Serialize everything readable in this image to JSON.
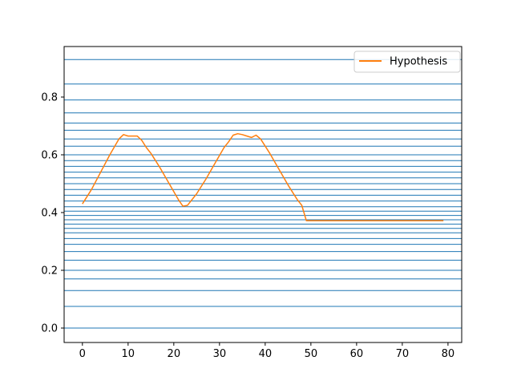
{
  "chart_data": {
    "type": "line",
    "title": "",
    "xlabel": "",
    "ylabel": "",
    "xlim": [
      -4,
      83
    ],
    "ylim": [
      -0.05,
      0.975
    ],
    "x_ticks": [
      0,
      10,
      20,
      30,
      40,
      50,
      60,
      70,
      80
    ],
    "y_ticks": [
      0.0,
      0.2,
      0.4,
      0.6,
      0.8
    ],
    "x_tick_labels": [
      "0",
      "10",
      "20",
      "30",
      "40",
      "50",
      "60",
      "70",
      "80"
    ],
    "y_tick_labels": [
      "0.0",
      "0.2",
      "0.4",
      "0.6",
      "0.8"
    ],
    "legend_position": "top-right",
    "grid": false,
    "colors": {
      "series": "#ff7f0e",
      "hlines": "#1f77b4",
      "axes": "#000000",
      "background": "#ffffff"
    },
    "horizontal_lines": {
      "color": "#1f77b4",
      "y": [
        0.0,
        0.075,
        0.13,
        0.17,
        0.2,
        0.235,
        0.265,
        0.29,
        0.31,
        0.33,
        0.345,
        0.36,
        0.375,
        0.39,
        0.405,
        0.42,
        0.44,
        0.46,
        0.48,
        0.5,
        0.52,
        0.54,
        0.56,
        0.58,
        0.6,
        0.63,
        0.655,
        0.685,
        0.71,
        0.745,
        0.79,
        0.845,
        0.93
      ]
    },
    "series": [
      {
        "name": "Hypothesis",
        "color": "#ff7f0e",
        "x": [
          0,
          2,
          4,
          6,
          8,
          9,
          10,
          11,
          12,
          13,
          14,
          15,
          17,
          19,
          21,
          22,
          23,
          25,
          27,
          29,
          31,
          32,
          33,
          34,
          35,
          36,
          37,
          38,
          39,
          41,
          43,
          45,
          47,
          48,
          49,
          50,
          60,
          70,
          79
        ],
        "y": [
          0.43,
          0.48,
          0.54,
          0.6,
          0.655,
          0.67,
          0.665,
          0.665,
          0.665,
          0.65,
          0.625,
          0.605,
          0.555,
          0.5,
          0.445,
          0.422,
          0.425,
          0.465,
          0.515,
          0.57,
          0.625,
          0.645,
          0.668,
          0.673,
          0.67,
          0.665,
          0.66,
          0.668,
          0.655,
          0.605,
          0.55,
          0.495,
          0.445,
          0.425,
          0.372,
          0.372,
          0.372,
          0.372,
          0.372
        ]
      }
    ]
  }
}
